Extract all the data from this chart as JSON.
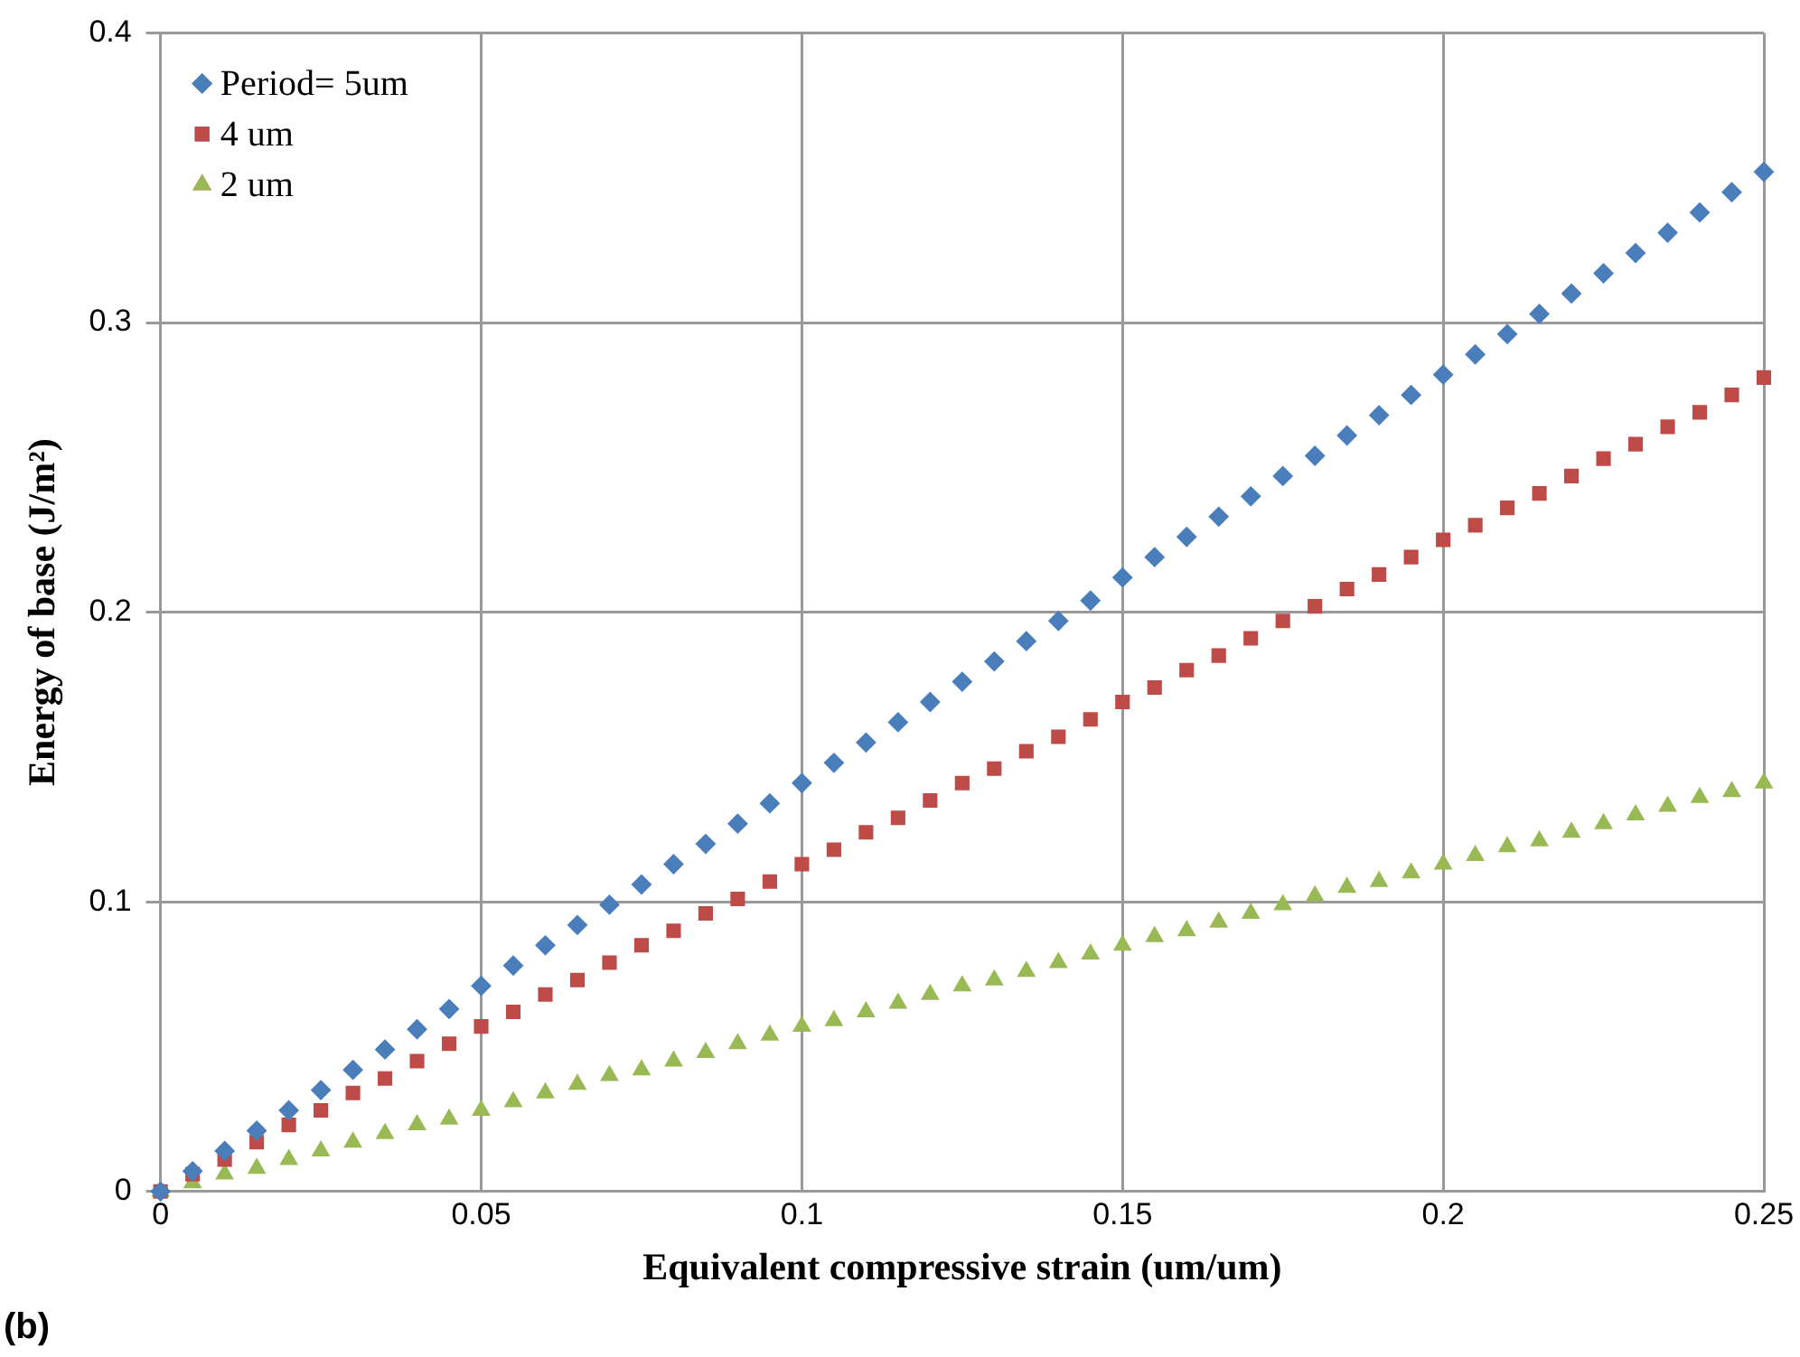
{
  "chart_data": {
    "type": "scatter",
    "xlabel": "Equivalent compressive strain (um/um)",
    "ylabel": "Energy of base (J/m²)",
    "annotations": [
      "(b)"
    ],
    "x": [
      0,
      0.005,
      0.01,
      0.015,
      0.02,
      0.025,
      0.03,
      0.035,
      0.04,
      0.045,
      0.05,
      0.055,
      0.06,
      0.065,
      0.07,
      0.075,
      0.08,
      0.085,
      0.09,
      0.095,
      0.1,
      0.105,
      0.11,
      0.115,
      0.12,
      0.125,
      0.13,
      0.135,
      0.14,
      0.145,
      0.15,
      0.155,
      0.16,
      0.165,
      0.17,
      0.175,
      0.18,
      0.185,
      0.19,
      0.195,
      0.2,
      0.205,
      0.21,
      0.215,
      0.22,
      0.225,
      0.23,
      0.235,
      0.24,
      0.245,
      0.25
    ],
    "series": [
      {
        "name": "Period= 5um",
        "color": "#4a7ebb",
        "marker": "diamond",
        "values": [
          0,
          0.007,
          0.014,
          0.021,
          0.028,
          0.035,
          0.042,
          0.049,
          0.056,
          0.063,
          0.071,
          0.078,
          0.085,
          0.092,
          0.099,
          0.106,
          0.113,
          0.12,
          0.127,
          0.134,
          0.141,
          0.148,
          0.155,
          0.162,
          0.169,
          0.176,
          0.183,
          0.19,
          0.197,
          0.204,
          0.212,
          0.219,
          0.226,
          0.233,
          0.24,
          0.247,
          0.254,
          0.261,
          0.268,
          0.275,
          0.282,
          0.289,
          0.296,
          0.303,
          0.31,
          0.317,
          0.324,
          0.331,
          0.338,
          0.345,
          0.352
        ]
      },
      {
        "name": "4 um",
        "color": "#be4b48",
        "marker": "square",
        "values": [
          0,
          0.006,
          0.011,
          0.017,
          0.023,
          0.028,
          0.034,
          0.039,
          0.045,
          0.051,
          0.057,
          0.062,
          0.068,
          0.073,
          0.079,
          0.085,
          0.09,
          0.096,
          0.101,
          0.107,
          0.113,
          0.118,
          0.124,
          0.129,
          0.135,
          0.141,
          0.146,
          0.152,
          0.157,
          0.163,
          0.169,
          0.174,
          0.18,
          0.185,
          0.191,
          0.197,
          0.202,
          0.208,
          0.213,
          0.219,
          0.225,
          0.23,
          0.236,
          0.241,
          0.247,
          0.253,
          0.258,
          0.264,
          0.269,
          0.275,
          0.281
        ]
      },
      {
        "name": "2 um",
        "color": "#98b954",
        "marker": "triangle",
        "values": [
          0,
          0.003,
          0.006,
          0.008,
          0.011,
          0.014,
          0.017,
          0.02,
          0.023,
          0.025,
          0.028,
          0.031,
          0.034,
          0.037,
          0.04,
          0.042,
          0.045,
          0.048,
          0.051,
          0.054,
          0.057,
          0.059,
          0.062,
          0.065,
          0.068,
          0.071,
          0.073,
          0.076,
          0.079,
          0.082,
          0.085,
          0.088,
          0.09,
          0.093,
          0.096,
          0.099,
          0.102,
          0.105,
          0.107,
          0.11,
          0.113,
          0.116,
          0.119,
          0.121,
          0.124,
          0.127,
          0.13,
          0.133,
          0.136,
          0.138,
          0.141
        ]
      }
    ],
    "xlim": [
      0,
      0.25
    ],
    "xticks": [
      0,
      0.05,
      0.1,
      0.15,
      0.2,
      0.25
    ],
    "ylim": [
      0,
      0.4
    ],
    "yticks": [
      0,
      0.1,
      0.2,
      0.3,
      0.4
    ],
    "grid": true,
    "legend": "top left"
  }
}
